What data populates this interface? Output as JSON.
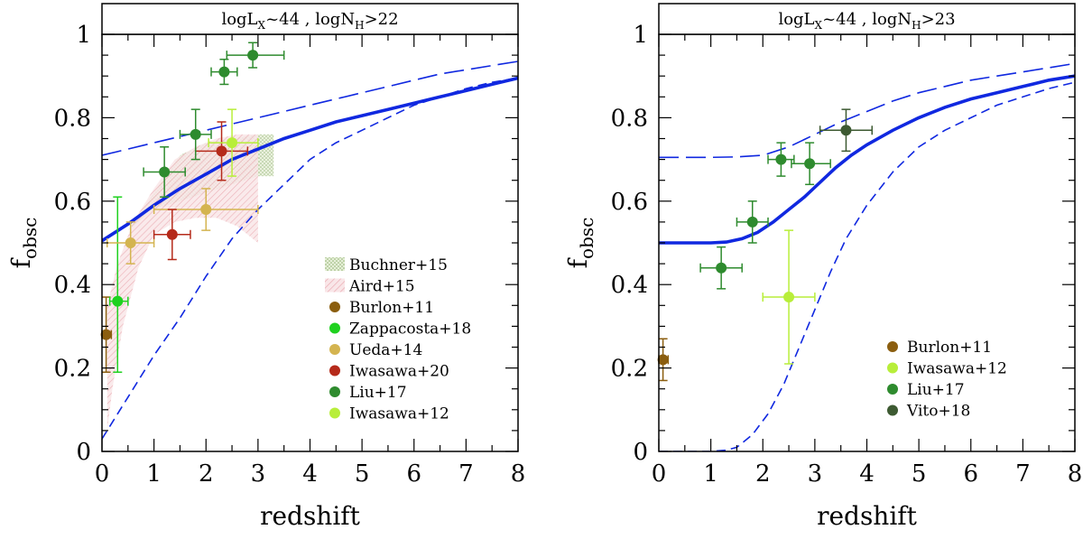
{
  "chart_data": [
    {
      "type": "scatter",
      "panel_title": "logL_X~44 , logN_H>22",
      "xlabel": "redshift",
      "ylabel": "f_obsc",
      "xlim": [
        0,
        8
      ],
      "ylim": [
        0,
        1
      ],
      "xticks": [
        "0",
        "1",
        "2",
        "3",
        "4",
        "5",
        "6",
        "7",
        "8"
      ],
      "yticks": [
        "0",
        "0.2",
        "0.4",
        "0.6",
        "0.8",
        "1"
      ],
      "legend_position": "bottom-right",
      "bands": [
        {
          "name": "Buchner+15",
          "color": "#8fb070",
          "pattern": "dots",
          "upper": [
            [
              0.5,
              0.53
            ],
            [
              1.0,
              0.62
            ],
            [
              1.5,
              0.71
            ],
            [
              2.0,
              0.74
            ],
            [
              2.5,
              0.75
            ],
            [
              3.0,
              0.76
            ],
            [
              3.3,
              0.76
            ]
          ],
          "lower": [
            [
              3.3,
              0.66
            ],
            [
              3.0,
              0.66
            ],
            [
              2.5,
              0.64
            ],
            [
              2.0,
              0.62
            ],
            [
              1.5,
              0.6
            ],
            [
              1.0,
              0.58
            ],
            [
              0.5,
              0.53
            ]
          ]
        },
        {
          "name": "Aird+15",
          "color": "#e8a0a8",
          "pattern": "hatch",
          "upper": [
            [
              0.1,
              0.35
            ],
            [
              0.3,
              0.45
            ],
            [
              0.6,
              0.55
            ],
            [
              1.0,
              0.63
            ],
            [
              1.4,
              0.7
            ],
            [
              1.8,
              0.73
            ],
            [
              2.2,
              0.75
            ],
            [
              2.6,
              0.76
            ],
            [
              3.0,
              0.76
            ]
          ],
          "lower": [
            [
              3.0,
              0.5
            ],
            [
              2.6,
              0.54
            ],
            [
              2.2,
              0.56
            ],
            [
              1.8,
              0.56
            ],
            [
              1.4,
              0.55
            ],
            [
              1.0,
              0.52
            ],
            [
              0.7,
              0.44
            ],
            [
              0.4,
              0.3
            ],
            [
              0.2,
              0.15
            ],
            [
              0.1,
              0.05
            ]
          ]
        }
      ],
      "series": [
        {
          "name": "Burlon+11",
          "color": "#8b5e0f",
          "points": [
            {
              "x": 0.08,
              "y": 0.28,
              "xerr": [
                0.08,
                0.1
              ],
              "yerr": [
                0.09,
                0.09
              ]
            }
          ]
        },
        {
          "name": "Zappacosta+18",
          "color": "#1fd11f",
          "points": [
            {
              "x": 0.3,
              "y": 0.36,
              "xerr": [
                0.15,
                0.2
              ],
              "yerr": [
                0.17,
                0.25
              ]
            }
          ]
        },
        {
          "name": "Ueda+14",
          "color": "#d4b450",
          "points": [
            {
              "x": 0.55,
              "y": 0.5,
              "xerr": [
                0.45,
                0.45
              ],
              "yerr": [
                0.05,
                0.05
              ]
            },
            {
              "x": 2.0,
              "y": 0.58,
              "xerr": [
                1.0,
                1.0
              ],
              "yerr": [
                0.05,
                0.05
              ]
            }
          ]
        },
        {
          "name": "Iwasawa+20",
          "color": "#b52a1a",
          "points": [
            {
              "x": 1.35,
              "y": 0.52,
              "xerr": [
                0.35,
                0.35
              ],
              "yerr": [
                0.06,
                0.06
              ]
            },
            {
              "x": 2.3,
              "y": 0.72,
              "xerr": [
                0.5,
                0.5
              ],
              "yerr": [
                0.07,
                0.07
              ]
            }
          ]
        },
        {
          "name": "Liu+17",
          "color": "#2e8b2e",
          "points": [
            {
              "x": 1.2,
              "y": 0.67,
              "xerr": [
                0.4,
                0.4
              ],
              "yerr": [
                0.06,
                0.06
              ]
            },
            {
              "x": 1.8,
              "y": 0.76,
              "xerr": [
                0.3,
                0.3
              ],
              "yerr": [
                0.06,
                0.06
              ]
            },
            {
              "x": 2.35,
              "y": 0.91,
              "xerr": [
                0.25,
                0.25
              ],
              "yerr": [
                0.03,
                0.03
              ]
            },
            {
              "x": 2.9,
              "y": 0.95,
              "xerr": [
                0.5,
                0.6
              ],
              "yerr": [
                0.03,
                0.03
              ]
            }
          ]
        },
        {
          "name": "Iwasawa+12",
          "color": "#b8ee3a",
          "points": [
            {
              "x": 2.5,
              "y": 0.74,
              "xerr": [
                0.45,
                0.5
              ],
              "yerr": [
                0.08,
                0.08
              ]
            }
          ]
        }
      ],
      "model_curves": [
        {
          "style": "solid",
          "color": "#1028e0",
          "x": [
            0,
            0.5,
            1,
            1.5,
            2,
            2.5,
            3,
            3.5,
            4,
            4.5,
            5,
            5.5,
            6,
            6.5,
            7,
            7.5,
            8
          ],
          "y": [
            0.505,
            0.545,
            0.59,
            0.63,
            0.665,
            0.7,
            0.725,
            0.75,
            0.77,
            0.79,
            0.805,
            0.82,
            0.835,
            0.85,
            0.865,
            0.88,
            0.895
          ]
        },
        {
          "style": "long-dash",
          "color": "#1028e0",
          "x": [
            0,
            0.5,
            1,
            1.5,
            2,
            2.5,
            3,
            3.5,
            4,
            4.5,
            5,
            5.5,
            6,
            6.5,
            7,
            7.5,
            8
          ],
          "y": [
            0.71,
            0.725,
            0.74,
            0.755,
            0.77,
            0.785,
            0.8,
            0.815,
            0.83,
            0.845,
            0.86,
            0.875,
            0.89,
            0.905,
            0.915,
            0.925,
            0.935
          ]
        },
        {
          "style": "short-dash",
          "color": "#1028e0",
          "x": [
            0,
            0.25,
            0.5,
            1,
            1.5,
            2,
            2.5,
            3,
            3.5,
            4,
            4.5,
            5,
            5.5,
            6,
            6.5,
            7,
            7.5,
            8
          ],
          "y": [
            0.03,
            0.08,
            0.13,
            0.23,
            0.32,
            0.42,
            0.51,
            0.58,
            0.64,
            0.7,
            0.74,
            0.77,
            0.8,
            0.83,
            0.85,
            0.87,
            0.885,
            0.895
          ]
        }
      ]
    },
    {
      "type": "scatter",
      "panel_title": "logL_X~44 , logN_H>23",
      "xlabel": "redshift",
      "ylabel": "f_obsc",
      "xlim": [
        0,
        8
      ],
      "ylim": [
        0,
        1
      ],
      "xticks": [
        "0",
        "1",
        "2",
        "3",
        "4",
        "5",
        "6",
        "7",
        "8"
      ],
      "yticks": [
        "0",
        "0.2",
        "0.4",
        "0.6",
        "0.8",
        "1"
      ],
      "legend_position": "bottom-right",
      "bands": [],
      "series": [
        {
          "name": "Burlon+11",
          "color": "#8b5e0f",
          "points": [
            {
              "x": 0.08,
              "y": 0.22,
              "xerr": [
                0.08,
                0.1
              ],
              "yerr": [
                0.05,
                0.05
              ]
            }
          ]
        },
        {
          "name": "Iwasawa+12",
          "color": "#b8ee3a",
          "points": [
            {
              "x": 2.5,
              "y": 0.37,
              "xerr": [
                0.5,
                0.5
              ],
              "yerr": [
                0.16,
                0.16
              ]
            }
          ]
        },
        {
          "name": "Liu+17",
          "color": "#2e8b2e",
          "points": [
            {
              "x": 1.2,
              "y": 0.44,
              "xerr": [
                0.4,
                0.4
              ],
              "yerr": [
                0.05,
                0.05
              ]
            },
            {
              "x": 1.8,
              "y": 0.55,
              "xerr": [
                0.3,
                0.3
              ],
              "yerr": [
                0.05,
                0.05
              ]
            },
            {
              "x": 2.35,
              "y": 0.7,
              "xerr": [
                0.25,
                0.25
              ],
              "yerr": [
                0.04,
                0.04
              ]
            },
            {
              "x": 2.9,
              "y": 0.69,
              "xerr": [
                0.35,
                0.4
              ],
              "yerr": [
                0.05,
                0.05
              ]
            }
          ]
        },
        {
          "name": "Vito+18",
          "color": "#3d5a32",
          "points": [
            {
              "x": 3.6,
              "y": 0.77,
              "xerr": [
                0.5,
                0.5
              ],
              "yerr": [
                0.05,
                0.05
              ]
            }
          ]
        }
      ],
      "model_curves": [
        {
          "style": "solid",
          "color": "#1028e0",
          "x": [
            0,
            0.5,
            1,
            1.3,
            1.6,
            1.9,
            2.2,
            2.5,
            2.8,
            3.1,
            3.4,
            3.7,
            4,
            4.5,
            5,
            5.5,
            6,
            6.5,
            7,
            7.5,
            8
          ],
          "y": [
            0.5,
            0.5,
            0.5,
            0.502,
            0.51,
            0.525,
            0.55,
            0.58,
            0.61,
            0.645,
            0.68,
            0.71,
            0.735,
            0.77,
            0.8,
            0.825,
            0.845,
            0.86,
            0.875,
            0.89,
            0.9
          ]
        },
        {
          "style": "long-dash",
          "color": "#1028e0",
          "x": [
            0,
            0.5,
            1,
            1.5,
            2,
            2.5,
            3,
            3.5,
            4,
            4.5,
            5,
            5.5,
            6,
            6.5,
            7,
            7.5,
            8
          ],
          "y": [
            0.705,
            0.705,
            0.705,
            0.706,
            0.71,
            0.73,
            0.76,
            0.79,
            0.815,
            0.84,
            0.86,
            0.875,
            0.89,
            0.9,
            0.91,
            0.92,
            0.93
          ]
        },
        {
          "style": "short-dash",
          "color": "#1028e0",
          "x": [
            0,
            0.5,
            1,
            1.3,
            1.5,
            1.8,
            2.1,
            2.4,
            2.7,
            3,
            3.3,
            3.6,
            4,
            4.5,
            5,
            5.5,
            6,
            6.5,
            7,
            7.5,
            8
          ],
          "y": [
            0,
            0,
            0,
            0.003,
            0.01,
            0.04,
            0.09,
            0.16,
            0.25,
            0.34,
            0.43,
            0.51,
            0.59,
            0.67,
            0.73,
            0.77,
            0.8,
            0.83,
            0.85,
            0.87,
            0.885
          ]
        }
      ]
    }
  ]
}
